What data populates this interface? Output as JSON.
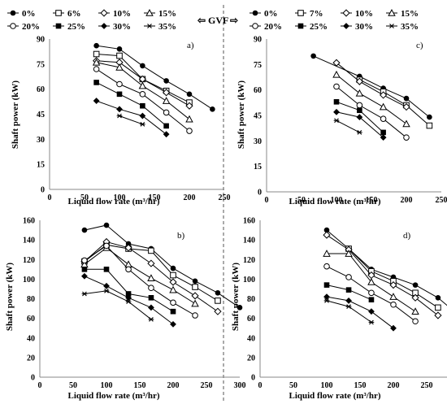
{
  "figure": {
    "gvf_label": "GVF",
    "gvf_arrow_left": "⇦",
    "gvf_arrow_right": "⇨"
  },
  "legends": {
    "left": [
      {
        "label": "0%",
        "marker": "circle-filled"
      },
      {
        "label": "6%",
        "marker": "square-open"
      },
      {
        "label": "10%",
        "marker": "diamond-open"
      },
      {
        "label": "15%",
        "marker": "triangle-open"
      },
      {
        "label": "20%",
        "marker": "circle-open"
      },
      {
        "label": "25%",
        "marker": "square-filled"
      },
      {
        "label": "30%",
        "marker": "diamond-filled"
      },
      {
        "label": "35%",
        "marker": "star"
      }
    ],
    "right": [
      {
        "label": "0%",
        "marker": "circle-filled"
      },
      {
        "label": "7%",
        "marker": "square-open"
      },
      {
        "label": "10%",
        "marker": "diamond-open"
      },
      {
        "label": "15%",
        "marker": "triangle-open"
      },
      {
        "label": "20%",
        "marker": "circle-open"
      },
      {
        "label": "25%",
        "marker": "square-filled"
      },
      {
        "label": "30%",
        "marker": "diamond-filled"
      },
      {
        "label": "35%",
        "marker": "star"
      }
    ]
  },
  "chart_data": [
    {
      "panel": "a)",
      "type": "line",
      "xlabel": "Liquid flow rate (m³/hr)",
      "ylabel": "Shaft power (kW)",
      "xlim": [
        0,
        250
      ],
      "xticks": [
        0,
        50,
        100,
        150,
        200,
        250
      ],
      "ylim": [
        0,
        90
      ],
      "yticks": [
        0,
        15,
        30,
        45,
        60,
        75,
        90
      ],
      "grid": false,
      "series": [
        {
          "name": "0%",
          "marker": "circle-filled",
          "points": [
            [
              67,
              86
            ],
            [
              100,
              84
            ],
            [
              133,
              74
            ],
            [
              167,
              65
            ],
            [
              200,
              57
            ],
            [
              233,
              48
            ]
          ]
        },
        {
          "name": "6%",
          "marker": "square-open",
          "points": [
            [
              67,
              81
            ],
            [
              100,
              80
            ],
            [
              133,
              66
            ],
            [
              167,
              59
            ],
            [
              200,
              52
            ]
          ]
        },
        {
          "name": "10%",
          "marker": "diamond-open",
          "points": [
            [
              67,
              77
            ],
            [
              100,
              76
            ],
            [
              133,
              66
            ],
            [
              167,
              58
            ],
            [
              200,
              50
            ]
          ]
        },
        {
          "name": "15%",
          "marker": "triangle-open",
          "points": [
            [
              67,
              76
            ],
            [
              100,
              73
            ],
            [
              133,
              62
            ],
            [
              167,
              53
            ],
            [
              200,
              42
            ]
          ]
        },
        {
          "name": "20%",
          "marker": "circle-open",
          "points": [
            [
              67,
              72
            ],
            [
              100,
              63
            ],
            [
              133,
              57
            ],
            [
              167,
              46
            ],
            [
              200,
              35
            ]
          ]
        },
        {
          "name": "25%",
          "marker": "square-filled",
          "points": [
            [
              67,
              64
            ],
            [
              100,
              57
            ],
            [
              133,
              50
            ],
            [
              167,
              38
            ]
          ]
        },
        {
          "name": "30%",
          "marker": "diamond-filled",
          "points": [
            [
              67,
              53
            ],
            [
              100,
              48
            ],
            [
              133,
              44
            ],
            [
              167,
              33
            ]
          ]
        },
        {
          "name": "35%",
          "marker": "star",
          "points": [
            [
              100,
              44
            ],
            [
              133,
              39
            ]
          ]
        }
      ]
    },
    {
      "panel": "c)",
      "type": "line",
      "xlabel": "Liquid flow rate (m³/hr)",
      "ylabel": "Shaft power (kW)",
      "xlim": [
        0,
        250
      ],
      "xticks": [
        0,
        50,
        100,
        150,
        200,
        250
      ],
      "ylim": [
        0,
        90
      ],
      "yticks": [
        0,
        15,
        30,
        45,
        60,
        75,
        90
      ],
      "grid": false,
      "series": [
        {
          "name": "0%",
          "marker": "circle-filled",
          "points": [
            [
              67,
              80
            ],
            [
              133,
              68
            ],
            [
              167,
              61
            ],
            [
              200,
              55
            ],
            [
              233,
              44
            ]
          ]
        },
        {
          "name": "7%",
          "marker": "square-open",
          "points": [
            [
              133,
              66
            ],
            [
              167,
              59
            ],
            [
              200,
              51
            ],
            [
              233,
              39
            ]
          ]
        },
        {
          "name": "10%",
          "marker": "diamond-open",
          "points": [
            [
              100,
              76
            ],
            [
              133,
              65
            ],
            [
              167,
              57
            ],
            [
              200,
              50
            ]
          ]
        },
        {
          "name": "15%",
          "marker": "triangle-open",
          "points": [
            [
              100,
              69
            ],
            [
              133,
              58
            ],
            [
              167,
              50
            ],
            [
              200,
              40
            ]
          ]
        },
        {
          "name": "20%",
          "marker": "circle-open",
          "points": [
            [
              100,
              62
            ],
            [
              133,
              51
            ],
            [
              167,
              43
            ],
            [
              200,
              32
            ]
          ]
        },
        {
          "name": "25%",
          "marker": "square-filled",
          "points": [
            [
              100,
              53
            ],
            [
              133,
              48
            ],
            [
              167,
              35
            ]
          ]
        },
        {
          "name": "30%",
          "marker": "diamond-filled",
          "points": [
            [
              100,
              47
            ],
            [
              133,
              44
            ],
            [
              167,
              32
            ]
          ]
        },
        {
          "name": "35%",
          "marker": "star",
          "points": [
            [
              100,
              42
            ],
            [
              133,
              35
            ]
          ]
        }
      ]
    },
    {
      "panel": "b)",
      "type": "line",
      "xlabel": "Liquid flow rate (m³/hr)",
      "ylabel": "Shaft power (kW)",
      "xlim": [
        0,
        300
      ],
      "xticks": [
        0,
        50,
        100,
        150,
        200,
        250,
        300
      ],
      "ylim": [
        0,
        160
      ],
      "yticks": [
        0,
        20,
        40,
        60,
        80,
        100,
        120,
        140,
        160
      ],
      "grid": false,
      "series": [
        {
          "name": "0%",
          "marker": "circle-filled",
          "points": [
            [
              67,
              150
            ],
            [
              100,
              155
            ],
            [
              133,
              136
            ],
            [
              167,
              131
            ],
            [
              200,
              111
            ],
            [
              233,
              98
            ],
            [
              267,
              86
            ],
            [
              300,
              71
            ]
          ]
        },
        {
          "name": "6%",
          "marker": "square-open",
          "points": [
            [
              67,
              118
            ],
            [
              100,
              135
            ],
            [
              133,
              131
            ],
            [
              167,
              129
            ],
            [
              200,
              104
            ],
            [
              233,
              92
            ],
            [
              267,
              78
            ]
          ]
        },
        {
          "name": "10%",
          "marker": "diamond-open",
          "points": [
            [
              67,
              118
            ],
            [
              100,
              138
            ],
            [
              133,
              132
            ],
            [
              167,
              116
            ],
            [
              200,
              97
            ],
            [
              233,
              83
            ],
            [
              267,
              67
            ]
          ]
        },
        {
          "name": "15%",
          "marker": "triangle-open",
          "points": [
            [
              67,
              115
            ],
            [
              100,
              132
            ],
            [
              133,
              115
            ],
            [
              167,
              101
            ],
            [
              200,
              89
            ],
            [
              233,
              75
            ]
          ]
        },
        {
          "name": "20%",
          "marker": "circle-open",
          "points": [
            [
              67,
              119
            ],
            [
              100,
              134
            ],
            [
              133,
              110
            ],
            [
              167,
              91
            ],
            [
              200,
              76
            ],
            [
              233,
              63
            ]
          ]
        },
        {
          "name": "25%",
          "marker": "square-filled",
          "points": [
            [
              67,
              110
            ],
            [
              100,
              110
            ],
            [
              133,
              85
            ],
            [
              167,
              81
            ],
            [
              200,
              67
            ]
          ]
        },
        {
          "name": "30%",
          "marker": "diamond-filled",
          "points": [
            [
              67,
              103
            ],
            [
              100,
              93
            ],
            [
              133,
              81
            ],
            [
              167,
              71
            ],
            [
              200,
              54
            ]
          ]
        },
        {
          "name": "35%",
          "marker": "star",
          "points": [
            [
              67,
              85
            ],
            [
              100,
              88
            ],
            [
              133,
              77
            ],
            [
              167,
              59
            ]
          ]
        }
      ]
    },
    {
      "panel": "d)",
      "type": "line",
      "xlabel": "Liquid flow rate (m³/hr)",
      "ylabel": "Shaft power (kW)",
      "xlim": [
        0,
        300
      ],
      "xticks": [
        0,
        50,
        100,
        150,
        200,
        250,
        300
      ],
      "ylim": [
        0,
        160
      ],
      "yticks": [
        0,
        20,
        40,
        60,
        80,
        100,
        120,
        140,
        160
      ],
      "grid": false,
      "series": [
        {
          "name": "0%",
          "marker": "circle-filled",
          "points": [
            [
              100,
              150
            ],
            [
              133,
              131
            ],
            [
              167,
              110
            ],
            [
              200,
              102
            ],
            [
              233,
              94
            ],
            [
              267,
              81
            ],
            [
              295,
              65
            ]
          ]
        },
        {
          "name": "7%",
          "marker": "square-open",
          "points": [
            [
              133,
              131
            ],
            [
              167,
              108
            ],
            [
              200,
              98
            ],
            [
              233,
              86
            ],
            [
              267,
              71
            ]
          ]
        },
        {
          "name": "10%",
          "marker": "diamond-open",
          "points": [
            [
              100,
              145
            ],
            [
              133,
              130
            ],
            [
              167,
              104
            ],
            [
              200,
              94
            ],
            [
              233,
              81
            ],
            [
              267,
              63
            ]
          ]
        },
        {
          "name": "15%",
          "marker": "triangle-open",
          "points": [
            [
              100,
              126
            ],
            [
              133,
              126
            ],
            [
              167,
              97
            ],
            [
              200,
              82
            ],
            [
              233,
              67
            ]
          ]
        },
        {
          "name": "20%",
          "marker": "circle-open",
          "points": [
            [
              100,
              113
            ],
            [
              133,
              102
            ],
            [
              167,
              86
            ],
            [
              200,
              74
            ],
            [
              233,
              57
            ]
          ]
        },
        {
          "name": "25%",
          "marker": "square-filled",
          "points": [
            [
              100,
              94
            ],
            [
              133,
              89
            ],
            [
              167,
              79
            ]
          ]
        },
        {
          "name": "30%",
          "marker": "diamond-filled",
          "points": [
            [
              100,
              82
            ],
            [
              133,
              78
            ],
            [
              167,
              67
            ],
            [
              200,
              50
            ]
          ]
        },
        {
          "name": "35%",
          "marker": "star",
          "points": [
            [
              100,
              78
            ],
            [
              133,
              72
            ],
            [
              167,
              56
            ]
          ]
        }
      ]
    }
  ]
}
